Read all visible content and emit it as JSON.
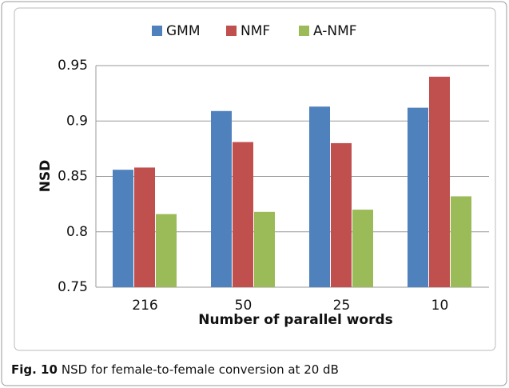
{
  "chart_data": {
    "type": "bar",
    "caption_label": "Fig. 10",
    "caption": "NSD for female-to-female conversion at 20 dB",
    "x_label": "Number of parallel words",
    "y_label": "NSD",
    "categories": [
      "216",
      "50",
      "25",
      "10"
    ],
    "series": [
      {
        "name": "GMM",
        "color": "#4f81bd",
        "values": [
          0.856,
          0.909,
          0.913,
          0.912
        ]
      },
      {
        "name": "NMF",
        "color": "#c0504d",
        "values": [
          0.858,
          0.881,
          0.88,
          0.94
        ]
      },
      {
        "name": "A-NMF",
        "color": "#9bbb59",
        "values": [
          0.816,
          0.818,
          0.82,
          0.832
        ]
      }
    ],
    "ylim": [
      0.75,
      0.95
    ],
    "yticks": [
      0.75,
      0.8,
      0.85,
      0.9,
      0.95
    ],
    "grid": true,
    "legend": "top"
  }
}
